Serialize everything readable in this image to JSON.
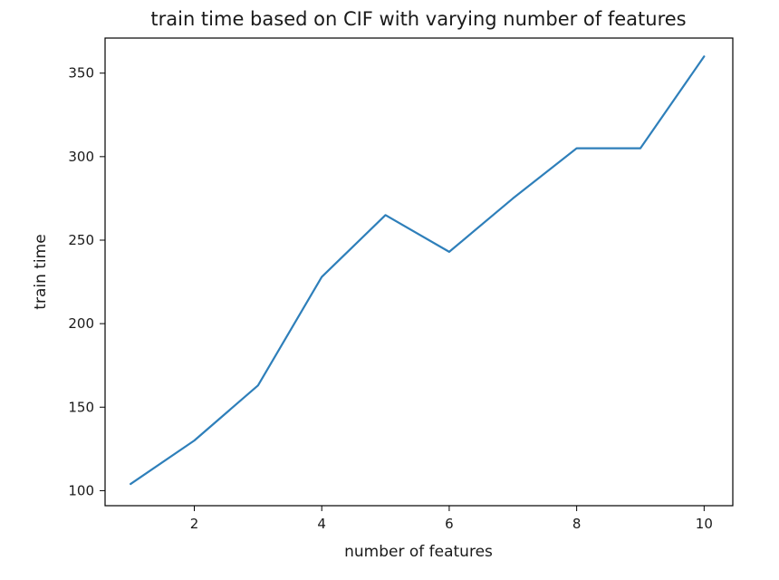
{
  "chart_data": {
    "type": "line",
    "title": "train time based on CIF with varying number of features",
    "xlabel": "number of features",
    "ylabel": "train time",
    "x": [
      1,
      2,
      3,
      4,
      5,
      6,
      7,
      8,
      9,
      10
    ],
    "series": [
      {
        "values": [
          104,
          130,
          163,
          228,
          265,
          243,
          275,
          305,
          305,
          360
        ],
        "color": "#2e7fba"
      }
    ],
    "xlim": [
      0.6,
      10.45
    ],
    "ylim": [
      91,
      371
    ],
    "x_ticks": [
      2,
      4,
      6,
      8,
      10
    ],
    "y_ticks": [
      100,
      150,
      200,
      250,
      300,
      350
    ],
    "grid": false,
    "legend": "none"
  }
}
